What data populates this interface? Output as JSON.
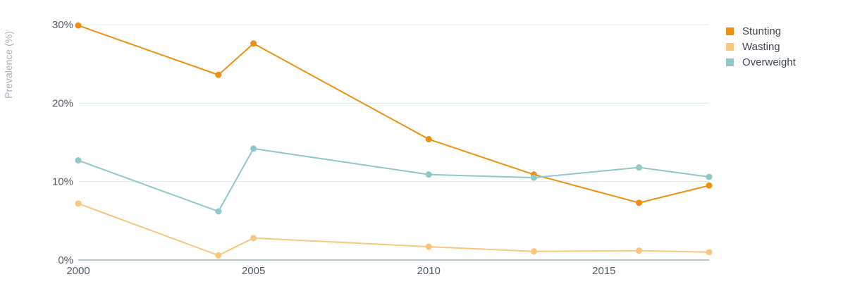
{
  "chart_data": {
    "type": "line",
    "title": "",
    "xlabel": "",
    "ylabel": "Prevalence (%)",
    "xlim": [
      2000,
      2018
    ],
    "ylim": [
      0,
      30
    ],
    "x_ticks": [
      2000,
      2005,
      2010,
      2015
    ],
    "y_ticks": [
      {
        "value": 0,
        "label": "0%"
      },
      {
        "value": 10,
        "label": "10%"
      },
      {
        "value": 20,
        "label": "20%"
      },
      {
        "value": 30,
        "label": "30%"
      }
    ],
    "grid": "horizontal",
    "legend_position": "top-right",
    "series": [
      {
        "name": "Stunting",
        "color": "#ee8f12",
        "points": [
          {
            "x": 2000,
            "y": 29.9
          },
          {
            "x": 2004,
            "y": 23.6
          },
          {
            "x": 2005,
            "y": 27.6
          },
          {
            "x": 2010,
            "y": 15.4
          },
          {
            "x": 2013,
            "y": 10.9
          },
          {
            "x": 2016,
            "y": 7.3
          },
          {
            "x": 2018,
            "y": 9.5
          }
        ]
      },
      {
        "name": "Wasting",
        "color": "#f9c67e",
        "points": [
          {
            "x": 2000,
            "y": 7.2
          },
          {
            "x": 2004,
            "y": 0.6
          },
          {
            "x": 2005,
            "y": 2.8
          },
          {
            "x": 2010,
            "y": 1.7
          },
          {
            "x": 2013,
            "y": 1.1
          },
          {
            "x": 2016,
            "y": 1.2
          },
          {
            "x": 2018,
            "y": 1.0
          }
        ]
      },
      {
        "name": "Overweight",
        "color": "#8fc8c9",
        "points": [
          {
            "x": 2000,
            "y": 12.7
          },
          {
            "x": 2004,
            "y": 6.2
          },
          {
            "x": 2005,
            "y": 14.2
          },
          {
            "x": 2010,
            "y": 10.9
          },
          {
            "x": 2013,
            "y": 10.5
          },
          {
            "x": 2016,
            "y": 11.8
          },
          {
            "x": 2018,
            "y": 10.6
          }
        ]
      }
    ]
  }
}
